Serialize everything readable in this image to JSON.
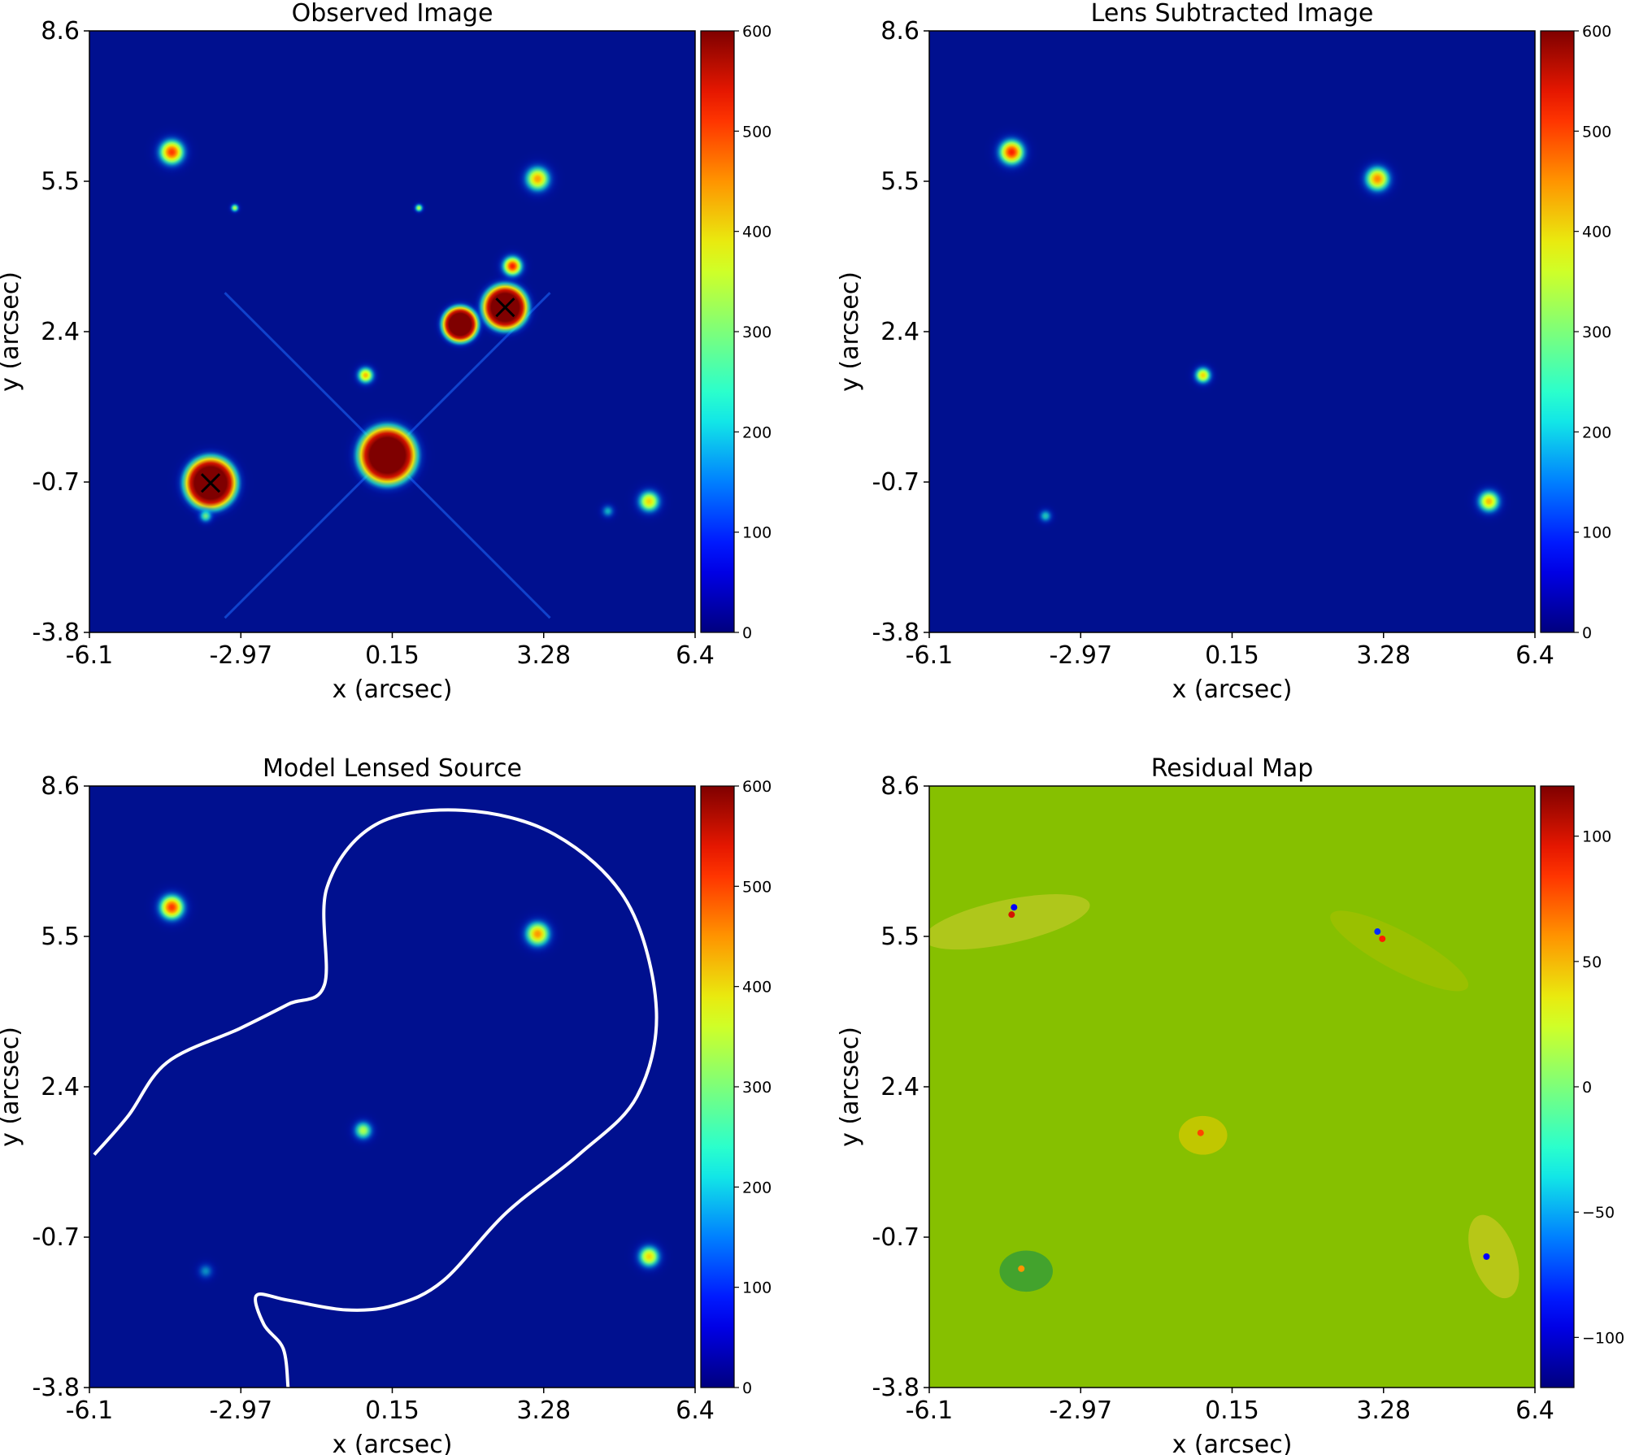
{
  "chart_data": [
    {
      "type": "heatmap",
      "title": "Observed Image",
      "xlabel": "x (arcsec)",
      "ylabel": "y (arcsec)",
      "xlim": [
        -6.1,
        6.4
      ],
      "ylim": [
        -3.8,
        8.6
      ],
      "xticks": [
        "-6.1",
        "-2.97",
        "0.15",
        "3.28",
        "6.4"
      ],
      "yticks": [
        "8.6",
        "5.5",
        "2.4",
        "-0.7",
        "-3.8"
      ],
      "colorbar": {
        "range": [
          0,
          600
        ],
        "ticks": [
          "0",
          "100",
          "200",
          "300",
          "400",
          "500",
          "600"
        ],
        "colormap": "jet"
      },
      "background_color": "#00108f",
      "sources": [
        {
          "x": 0.05,
          "y": -0.15,
          "peak": 600,
          "sigma": 0.45,
          "saturated_radius": 0.42
        },
        {
          "x": -3.6,
          "y": -0.72,
          "peak": 600,
          "sigma": 0.35,
          "saturated_radius": 0.38
        },
        {
          "x": 2.48,
          "y": 2.9,
          "peak": 600,
          "sigma": 0.32,
          "saturated_radius": 0.33
        },
        {
          "x": 1.55,
          "y": 2.55,
          "peak": 600,
          "sigma": 0.28,
          "saturated_radius": 0.26
        },
        {
          "x": -4.4,
          "y": 6.1,
          "peak": 500,
          "sigma": 0.18
        },
        {
          "x": 3.15,
          "y": 5.55,
          "peak": 420,
          "sigma": 0.18
        },
        {
          "x": 2.63,
          "y": 3.75,
          "peak": 520,
          "sigma": 0.14
        },
        {
          "x": -0.4,
          "y": 1.5,
          "peak": 400,
          "sigma": 0.12
        },
        {
          "x": 5.45,
          "y": -1.1,
          "peak": 380,
          "sigma": 0.16
        },
        {
          "x": -3.7,
          "y": -1.4,
          "peak": 250,
          "sigma": 0.1
        },
        {
          "x": -3.1,
          "y": 4.95,
          "peak": 300,
          "sigma": 0.06
        },
        {
          "x": 0.7,
          "y": 4.95,
          "peak": 300,
          "sigma": 0.06
        },
        {
          "x": 4.6,
          "y": -1.3,
          "peak": 180,
          "sigma": 0.1
        }
      ],
      "markers": [
        {
          "symbol": "x",
          "x": -3.6,
          "y": -0.72,
          "color": "#000000"
        },
        {
          "symbol": "x",
          "x": 2.48,
          "y": 2.9,
          "color": "#000000"
        }
      ]
    },
    {
      "type": "heatmap",
      "title": "Lens Subtracted Image",
      "xlabel": "x (arcsec)",
      "ylabel": "y (arcsec)",
      "xlim": [
        -6.1,
        6.4
      ],
      "ylim": [
        -3.8,
        8.6
      ],
      "xticks": [
        "-6.1",
        "-2.97",
        "0.15",
        "3.28",
        "6.4"
      ],
      "yticks": [
        "8.6",
        "5.5",
        "2.4",
        "-0.7",
        "-3.8"
      ],
      "colorbar": {
        "range": [
          0,
          600
        ],
        "ticks": [
          "0",
          "100",
          "200",
          "300",
          "400",
          "500",
          "600"
        ],
        "colormap": "jet"
      },
      "background_color": "#00108f",
      "sources": [
        {
          "x": -4.4,
          "y": 6.1,
          "peak": 520,
          "sigma": 0.18
        },
        {
          "x": 3.15,
          "y": 5.55,
          "peak": 440,
          "sigma": 0.18
        },
        {
          "x": -0.45,
          "y": 1.5,
          "peak": 380,
          "sigma": 0.12
        },
        {
          "x": 5.45,
          "y": -1.1,
          "peak": 400,
          "sigma": 0.16
        },
        {
          "x": -3.7,
          "y": -1.4,
          "peak": 200,
          "sigma": 0.1
        }
      ]
    },
    {
      "type": "heatmap",
      "title": "Model Lensed Source",
      "xlabel": "x (arcsec)",
      "ylabel": "y (arcsec)",
      "xlim": [
        -6.1,
        6.4
      ],
      "ylim": [
        -3.8,
        8.6
      ],
      "xticks": [
        "-6.1",
        "-2.97",
        "0.15",
        "3.28",
        "6.4"
      ],
      "yticks": [
        "8.6",
        "5.5",
        "2.4",
        "-0.7",
        "-3.8"
      ],
      "colorbar": {
        "range": [
          0,
          600
        ],
        "ticks": [
          "0",
          "100",
          "200",
          "300",
          "400",
          "500",
          "600"
        ],
        "colormap": "jet"
      },
      "background_color": "#00108f",
      "sources": [
        {
          "x": -4.4,
          "y": 6.1,
          "peak": 500,
          "sigma": 0.18
        },
        {
          "x": 3.15,
          "y": 5.55,
          "peak": 430,
          "sigma": 0.18
        },
        {
          "x": -0.45,
          "y": 1.5,
          "peak": 300,
          "sigma": 0.14
        },
        {
          "x": 5.45,
          "y": -1.1,
          "peak": 380,
          "sigma": 0.16
        },
        {
          "x": -3.7,
          "y": -1.4,
          "peak": 160,
          "sigma": 0.12
        }
      ],
      "critical_curve": {
        "color": "#ffffff",
        "points": [
          [
            -6.0,
            1.0
          ],
          [
            -5.3,
            1.8
          ],
          [
            -4.5,
            2.9
          ],
          [
            -3.0,
            3.6
          ],
          [
            -2.0,
            4.1
          ],
          [
            -1.25,
            4.5
          ],
          [
            -1.2,
            6.5
          ],
          [
            -0.2,
            7.8
          ],
          [
            1.6,
            8.1
          ],
          [
            3.5,
            7.6
          ],
          [
            5.0,
            6.2
          ],
          [
            5.6,
            4.0
          ],
          [
            5.2,
            2.2
          ],
          [
            4.0,
            1.0
          ],
          [
            2.5,
            -0.2
          ],
          [
            1.2,
            -1.6
          ],
          [
            0.2,
            -2.1
          ],
          [
            -0.8,
            -2.2
          ],
          [
            -2.0,
            -2.0
          ],
          [
            -2.65,
            -1.9
          ],
          [
            -2.5,
            -2.5
          ],
          [
            -2.1,
            -3.0
          ],
          [
            -2.0,
            -3.8
          ]
        ]
      }
    },
    {
      "type": "heatmap",
      "title": "Residual Map",
      "xlabel": "x (arcsec)",
      "ylabel": "y (arcsec)",
      "xlim": [
        -6.1,
        6.4
      ],
      "ylim": [
        -3.8,
        8.6
      ],
      "xticks": [
        "-6.1",
        "-2.97",
        "0.15",
        "3.28",
        "6.4"
      ],
      "yticks": [
        "8.6",
        "5.5",
        "2.4",
        "-0.7",
        "-3.8"
      ],
      "colorbar": {
        "range": [
          -120,
          120
        ],
        "ticks": [
          "100",
          "50",
          "0",
          "−50",
          "−100"
        ],
        "tick_values": [
          100,
          50,
          0,
          -50,
          -100
        ],
        "colormap": "jet"
      },
      "background_color": "#86c000",
      "residual_regions": [
        {
          "x": -4.5,
          "y": 5.8,
          "w": 3.5,
          "h": 0.9,
          "angle": 12,
          "color": "#b4c81e"
        },
        {
          "x": 3.6,
          "y": 5.2,
          "w": 3.2,
          "h": 0.8,
          "angle": -28,
          "color": "#9cc000"
        },
        {
          "x": -0.45,
          "y": 1.4,
          "w": 1.0,
          "h": 0.8,
          "angle": 0,
          "color": "#c8c800"
        },
        {
          "x": -4.1,
          "y": -1.4,
          "w": 1.1,
          "h": 0.85,
          "angle": 0,
          "color": "#3ca032"
        },
        {
          "x": 5.55,
          "y": -1.1,
          "w": 0.9,
          "h": 1.8,
          "angle": 20,
          "color": "#bcc81a"
        }
      ],
      "residual_cores": [
        {
          "x": -4.35,
          "y": 6.1,
          "value": -90
        },
        {
          "x": -4.4,
          "y": 5.95,
          "value": 100
        },
        {
          "x": 3.15,
          "y": 5.6,
          "value": -80
        },
        {
          "x": 3.25,
          "y": 5.45,
          "value": 90
        },
        {
          "x": -0.5,
          "y": 1.45,
          "value": 80
        },
        {
          "x": -4.2,
          "y": -1.35,
          "value": 60
        },
        {
          "x": 5.4,
          "y": -1.1,
          "value": -90
        }
      ]
    }
  ]
}
